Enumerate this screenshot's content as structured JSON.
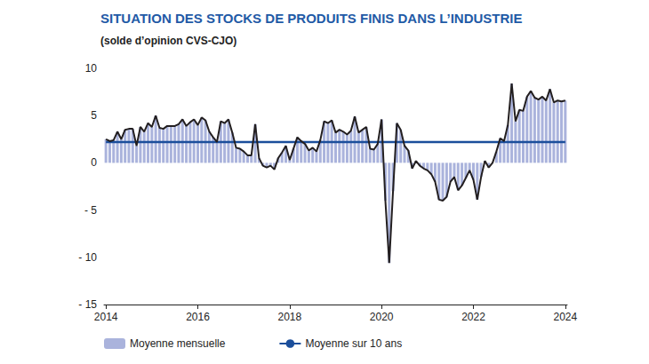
{
  "chart_data": {
    "type": "bar",
    "title": "SITUATION DES STOCKS DE PRODUITS FINIS DANS L’INDUSTRIE",
    "subtitle": "(solde d’opinion CVS-CJO)",
    "categories": [
      "2014",
      null,
      null,
      null,
      null,
      null,
      null,
      null,
      null,
      null,
      null,
      null,
      null,
      null,
      null,
      null,
      null,
      null,
      null,
      null,
      null,
      null,
      null,
      null,
      "2016",
      null,
      null,
      null,
      null,
      null,
      null,
      null,
      null,
      null,
      null,
      null,
      null,
      null,
      null,
      null,
      null,
      null,
      null,
      null,
      null,
      null,
      null,
      null,
      "2018",
      null,
      null,
      null,
      null,
      null,
      null,
      null,
      null,
      null,
      null,
      null,
      null,
      null,
      null,
      null,
      null,
      null,
      null,
      null,
      null,
      null,
      null,
      null,
      "2020",
      null,
      null,
      null,
      null,
      null,
      null,
      null,
      null,
      null,
      null,
      null,
      null,
      null,
      null,
      null,
      null,
      null,
      null,
      null,
      null,
      null,
      null,
      null,
      "2022",
      null,
      null,
      null,
      null,
      null,
      null,
      null,
      null,
      null,
      null,
      null,
      null,
      null,
      null,
      null,
      null,
      null,
      null,
      null,
      null,
      null,
      null,
      null,
      "2024"
    ],
    "series": [
      {
        "name": "Moyenne mensuelle",
        "type": "bar",
        "color": "#aab3dc",
        "line_style": "solid",
        "values": [
          2.5,
          2.3,
          2.4,
          3.3,
          2.5,
          3.5,
          3.6,
          3.6,
          1.8,
          3.8,
          3.3,
          4.2,
          3.8,
          5.0,
          3.7,
          3.6,
          3.9,
          3.9,
          3.9,
          4.1,
          4.6,
          3.9,
          4.3,
          4.6,
          4.0,
          4.8,
          4.5,
          3.3,
          2.7,
          2.2,
          4.4,
          4.2,
          4.6,
          3.2,
          1.6,
          1.5,
          1.2,
          0.8,
          0.8,
          4.1,
          0.5,
          -0.3,
          -0.5,
          -0.3,
          -0.7,
          0.5,
          1.1,
          1.8,
          0.3,
          1.5,
          2.7,
          2.3,
          2.0,
          1.3,
          1.6,
          1.2,
          2.4,
          4.4,
          4.2,
          4.5,
          3.2,
          3.5,
          3.3,
          3.0,
          3.4,
          4.9,
          3.2,
          3.5,
          3.8,
          1.5,
          1.4,
          2.0,
          4.6,
          -4.0,
          -10.6,
          -3.0,
          4.2,
          3.5,
          1.8,
          1.3,
          -0.6,
          0.2,
          -0.3,
          -0.6,
          -0.8,
          -1.2,
          -2.0,
          -3.9,
          -4.0,
          -3.6,
          -2.0,
          -1.5,
          -2.9,
          -2.4,
          -1.6,
          -0.8,
          -1.8,
          -3.9,
          -1.5,
          0.2,
          -0.5,
          0.0,
          1.2,
          2.6,
          2.3,
          4.0,
          8.4,
          4.4,
          5.6,
          5.5,
          7.0,
          7.6,
          6.9,
          6.7,
          7.0,
          6.6,
          7.8,
          6.4,
          6.6,
          6.5,
          6.6
        ]
      },
      {
        "name": "Moyenne sur 10 ans",
        "type": "line",
        "color": "#1b4e9b",
        "values": [
          2.2,
          2.2,
          2.2,
          2.2,
          2.2,
          2.2,
          2.2,
          2.2,
          2.2,
          2.2,
          2.2,
          2.2,
          2.2,
          2.2,
          2.2,
          2.2,
          2.2,
          2.2,
          2.2,
          2.2,
          2.2,
          2.2,
          2.2,
          2.2,
          2.2,
          2.2,
          2.2,
          2.2,
          2.2,
          2.2,
          2.2,
          2.2,
          2.2,
          2.2,
          2.2,
          2.2,
          2.2,
          2.2,
          2.2,
          2.2,
          2.2,
          2.2,
          2.2,
          2.2,
          2.2,
          2.2,
          2.2,
          2.2,
          2.2,
          2.2,
          2.2,
          2.2,
          2.2,
          2.2,
          2.2,
          2.2,
          2.2,
          2.2,
          2.2,
          2.2,
          2.2,
          2.2,
          2.2,
          2.2,
          2.2,
          2.2,
          2.2,
          2.2,
          2.2,
          2.2,
          2.2,
          2.2,
          2.2,
          2.2,
          2.2,
          2.2,
          2.2,
          2.2,
          2.2,
          2.2,
          2.2,
          2.2,
          2.2,
          2.2,
          2.2,
          2.2,
          2.2,
          2.2,
          2.2,
          2.2,
          2.2,
          2.2,
          2.2,
          2.2,
          2.2,
          2.2,
          2.2,
          2.2,
          2.2,
          2.2,
          2.2,
          2.2,
          2.2,
          2.2,
          2.2,
          2.2,
          2.2,
          2.2,
          2.2,
          2.2,
          2.2,
          2.2,
          2.2,
          2.2,
          2.2,
          2.2,
          2.2,
          2.2,
          2.2,
          2.2,
          2.2
        ]
      }
    ],
    "ylim": [
      -15,
      10
    ],
    "yticks": [
      {
        "value": -15,
        "label": "- 15"
      },
      {
        "value": -10,
        "label": "- 10"
      },
      {
        "value": -5,
        "label": "- 5"
      },
      0,
      5,
      10
    ],
    "grid": false,
    "legend": "bottom-left"
  }
}
